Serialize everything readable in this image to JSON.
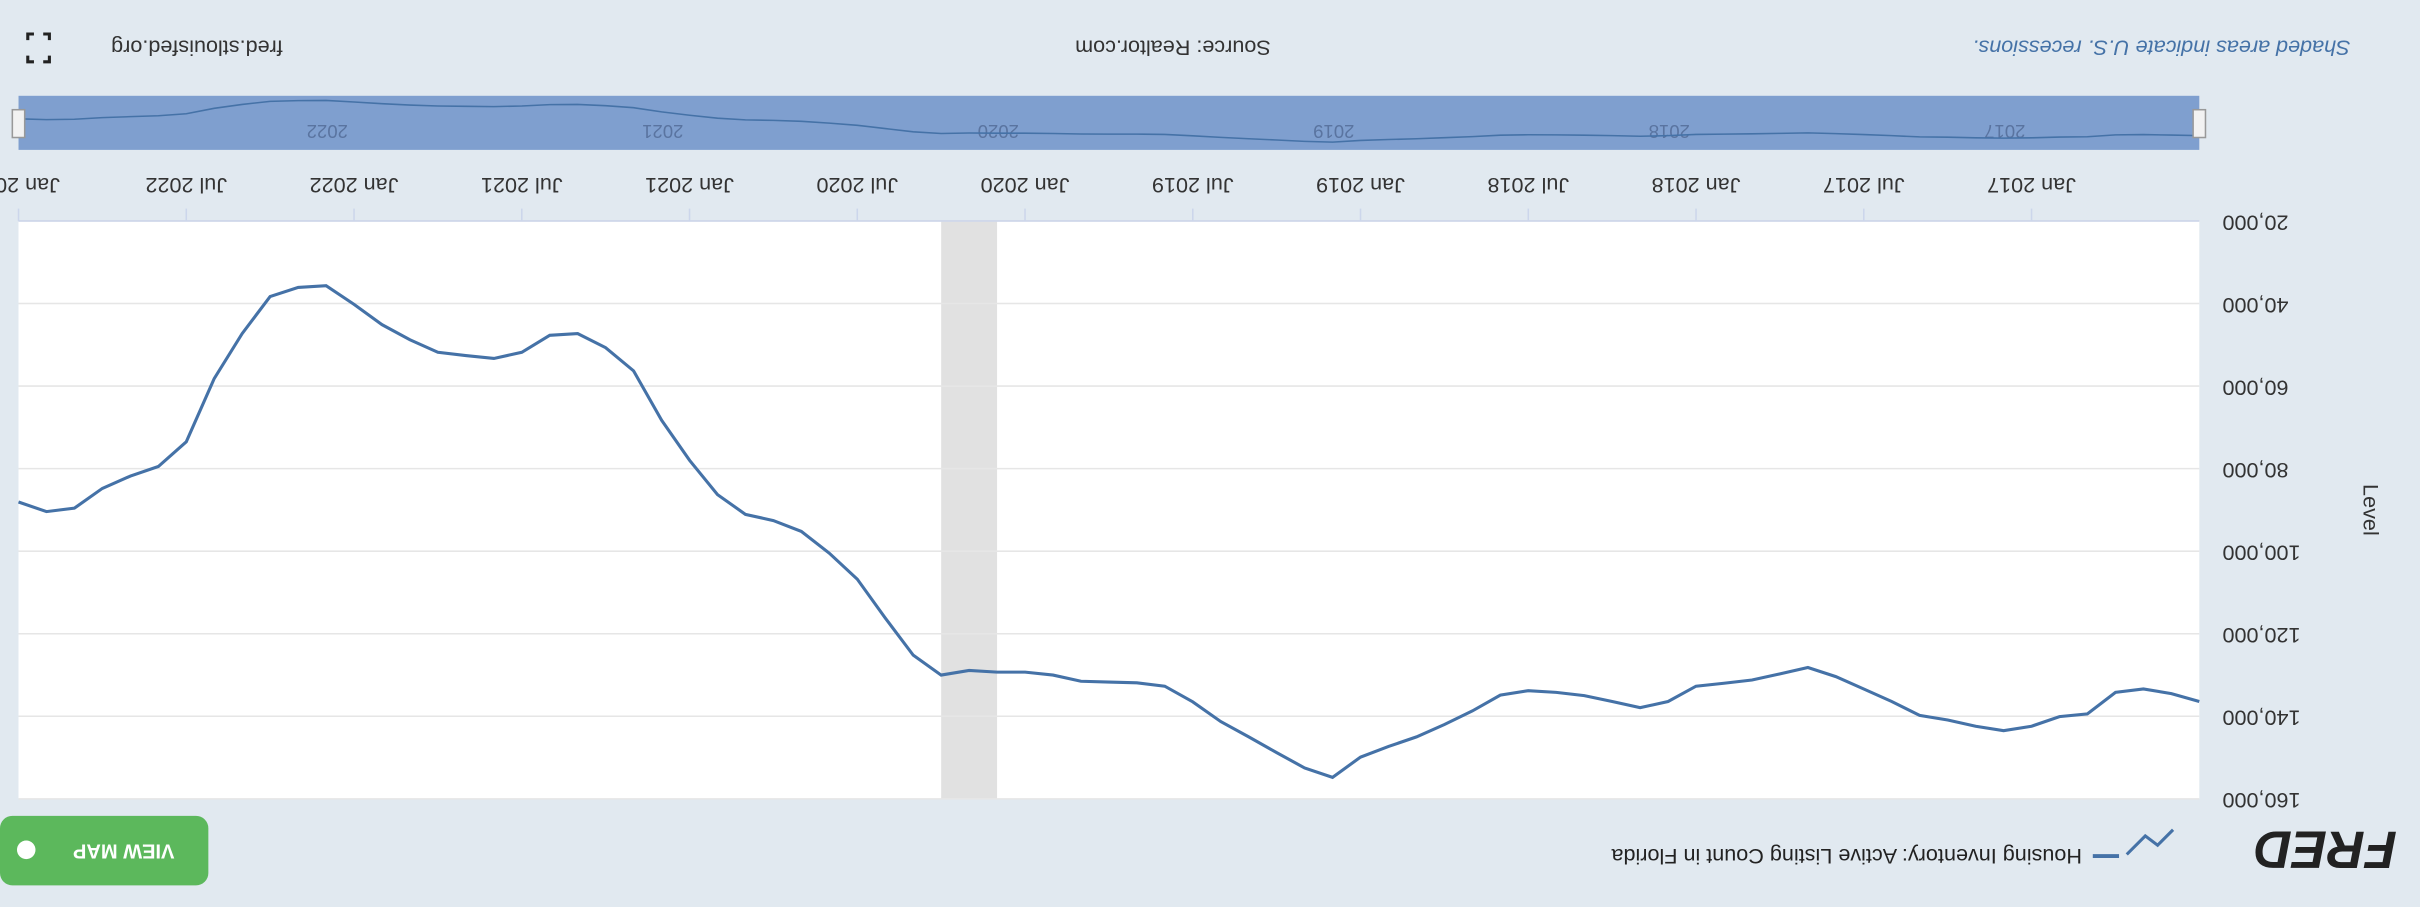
{
  "logo": "FRED",
  "button": "VIEW MAP",
  "chart_data": {
    "type": "line",
    "y_label": "Level",
    "series": [
      {
        "name": "Housing Inventory: Active Listing Count in Florida",
        "color": "#4572a7",
        "values": [
          136400,
          134500,
          133400,
          134200,
          139400,
          140100,
          142400,
          143500,
          142400,
          140900,
          139800,
          136400,
          133400,
          130400,
          128200,
          129700,
          131200,
          132000,
          132700,
          136400,
          137900,
          136400,
          135000,
          134200,
          133800,
          134900,
          138700,
          142000,
          145000,
          147300,
          149900,
          154800,
          152500,
          148800,
          145000,
          141300,
          136500,
          132700,
          131900,
          131700,
          131500,
          130000,
          129300,
          129300,
          128900,
          130000,
          125200,
          116200,
          106800,
          100500,
          95200,
          92600,
          91100,
          86300,
          78000,
          68300,
          56300,
          50700,
          47300,
          47700,
          51800,
          53300,
          52600,
          51800,
          48800,
          45100,
          40200,
          35700,
          36100,
          38300,
          47300,
          58200,
          73500,
          79500,
          81800,
          84800,
          89600,
          90400,
          88100
        ]
      }
    ],
    "x": [
      "2016-07",
      "2016-08",
      "2016-09",
      "2016-10",
      "2016-11",
      "2016-12",
      "2017-01",
      "2017-02",
      "2017-03",
      "2017-04",
      "2017-05",
      "2017-06",
      "2017-07",
      "2017-08",
      "2017-09",
      "2017-10",
      "2017-11",
      "2017-12",
      "2018-01",
      "2018-02",
      "2018-03",
      "2018-04",
      "2018-05",
      "2018-06",
      "2018-07",
      "2018-08",
      "2018-09",
      "2018-10",
      "2018-11",
      "2018-12",
      "2019-01",
      "2019-02",
      "2019-03",
      "2019-04",
      "2019-05",
      "2019-06",
      "2019-07",
      "2019-08",
      "2019-09",
      "2019-10",
      "2019-11",
      "2019-12",
      "2020-01",
      "2020-02",
      "2020-03",
      "2020-04",
      "2020-05",
      "2020-06",
      "2020-07",
      "2020-08",
      "2020-09",
      "2020-10",
      "2020-11",
      "2020-12",
      "2021-01",
      "2021-02",
      "2021-03",
      "2021-04",
      "2021-05",
      "2021-06",
      "2021-07",
      "2021-08",
      "2021-09",
      "2021-10",
      "2021-11",
      "2021-12",
      "2022-01",
      "2022-02",
      "2022-03",
      "2022-04",
      "2022-05",
      "2022-06",
      "2022-07",
      "2022-08",
      "2022-09",
      "2022-10",
      "2022-11",
      "2022-12",
      "2023-01"
    ],
    "xlim": [
      "2016-07",
      "2023-01"
    ],
    "xticks": [
      {
        "value": "2017-01",
        "label": "Jan 2017"
      },
      {
        "value": "2017-07",
        "label": "Jul 2017"
      },
      {
        "value": "2018-01",
        "label": "Jan 2018"
      },
      {
        "value": "2018-07",
        "label": "Jul 2018"
      },
      {
        "value": "2019-01",
        "label": "Jan 2019"
      },
      {
        "value": "2019-07",
        "label": "Jul 2019"
      },
      {
        "value": "2020-01",
        "label": "Jan 2020"
      },
      {
        "value": "2020-07",
        "label": "Jul 2020"
      },
      {
        "value": "2021-01",
        "label": "Jan 2021"
      },
      {
        "value": "2021-07",
        "label": "Jul 2021"
      },
      {
        "value": "2022-01",
        "label": "Jan 2022"
      },
      {
        "value": "2022-07",
        "label": "Jul 2022"
      },
      {
        "value": "2023-01",
        "label": "Jan 20..."
      }
    ],
    "ylim": [
      20000,
      160000
    ],
    "yticks": [
      {
        "value": 20000,
        "label": "20,000"
      },
      {
        "value": 40000,
        "label": "40,000"
      },
      {
        "value": 60000,
        "label": "60,000"
      },
      {
        "value": 80000,
        "label": "80,000"
      },
      {
        "value": 100000,
        "label": "100,000"
      },
      {
        "value": 120000,
        "label": "120,000"
      },
      {
        "value": 140000,
        "label": "140,000"
      },
      {
        "value": 160000,
        "label": "160,000"
      }
    ],
    "grid": true,
    "recessions": [
      {
        "start": "2020-02",
        "end": "2020-04"
      }
    ],
    "navigator_labels": [
      {
        "value": "2017-01",
        "label": "2017"
      },
      {
        "value": "2018-01",
        "label": "2018"
      },
      {
        "value": "2019-01",
        "label": "2019"
      },
      {
        "value": "2020-01",
        "label": "2020"
      },
      {
        "value": "2021-01",
        "label": "2021"
      },
      {
        "value": "2022-01",
        "label": "2022"
      }
    ],
    "note": "Shaded areas indicate U.S. recessions.",
    "source": "Source: Realtor.com",
    "site": "fred.stlouisfed.org"
  }
}
